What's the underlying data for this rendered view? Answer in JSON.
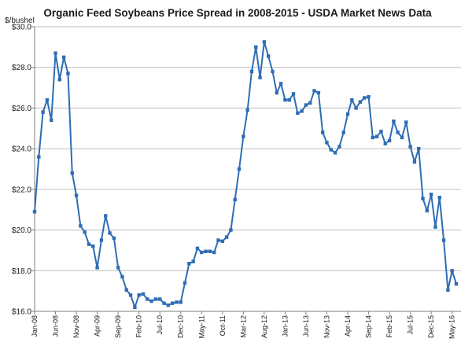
{
  "chart_data": {
    "type": "line",
    "title": "Organic Feed Soybeans Price Spread in 2008-2015 - USDA Market News Data",
    "ylabel": "$/bushel",
    "xlabel": "",
    "ylim": [
      16.0,
      30.0
    ],
    "ytick_values": [
      16,
      18,
      20,
      22,
      24,
      26,
      28,
      30
    ],
    "ytick_labels": [
      "$16.0",
      "$18.0",
      "$20.0",
      "$22.0",
      "$24.0",
      "$26.0",
      "$28.0",
      "$30.0"
    ],
    "x_tick_labels": [
      "Jan-08",
      "Jun-08",
      "Nov-08",
      "Apr-09",
      "Sep-09",
      "Feb-10",
      "Jul-10",
      "Dec-10",
      "May-11",
      "Oct-11",
      "Mar-12",
      "Aug-12",
      "Jan-13",
      "Jun-13",
      "Nov-13",
      "Apr-14",
      "Sep-14",
      "Feb-15",
      "Jul-15",
      "Dec-15",
      "May-16"
    ],
    "x_tick_every": 5,
    "grid": true,
    "legend": "none",
    "line_color": "#2e6db4",
    "marker_color": "#2e6db4",
    "series": [
      {
        "values": [
          20.9,
          23.6,
          25.8,
          26.4,
          25.4,
          28.7,
          27.4,
          28.5,
          27.7,
          22.8,
          21.7,
          20.2,
          19.9,
          19.3,
          19.2,
          18.15,
          19.5,
          20.7,
          19.85,
          19.6,
          18.15,
          17.7,
          17.05,
          16.8,
          16.2,
          16.8,
          16.85,
          16.6,
          16.5,
          16.6,
          16.6,
          16.4,
          16.3,
          16.4,
          16.45,
          16.45,
          17.4,
          18.35,
          18.45,
          19.1,
          18.9,
          18.95,
          18.95,
          18.9,
          19.5,
          19.45,
          19.65,
          20.0,
          21.5,
          23.0,
          24.6,
          25.9,
          27.8,
          29.0,
          27.5,
          29.25,
          28.55,
          27.8,
          26.75,
          27.2,
          26.4,
          26.4,
          26.7,
          25.75,
          25.85,
          26.15,
          26.25,
          26.85,
          26.75,
          24.8,
          24.3,
          23.95,
          23.8,
          24.1,
          24.8,
          25.7,
          26.4,
          26.0,
          26.3,
          26.5,
          26.55,
          24.55,
          24.6,
          24.85,
          24.25,
          24.4,
          25.35,
          24.8,
          24.55,
          25.3,
          24.1,
          23.35,
          24.0,
          21.55,
          20.95,
          21.75,
          20.15,
          21.6,
          19.5,
          17.05,
          18.0,
          17.35
        ]
      }
    ]
  }
}
